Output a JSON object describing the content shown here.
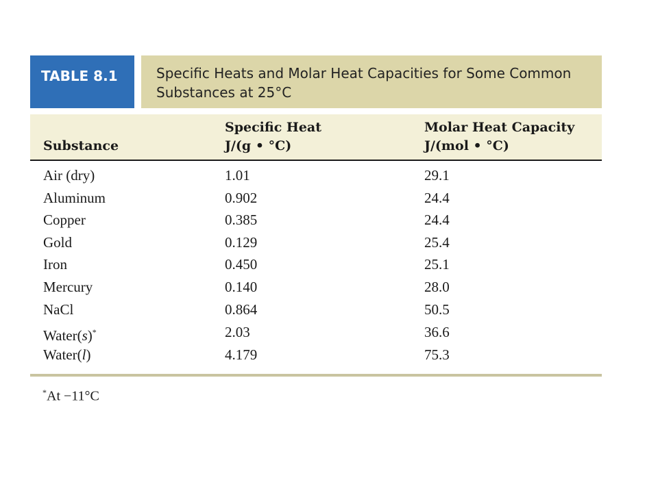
{
  "table": {
    "label": "TABLE 8.1",
    "caption_line1": "Specific Heats and Molar Heat Capacities for Some Common",
    "caption_line2": "Substances at 25°C",
    "headers": {
      "substance": "Substance",
      "specific_heat_line1": "Specific Heat",
      "specific_heat_line2": "J/(g • °C)",
      "molar_line1": "Molar Heat Capacity",
      "molar_line2": "J/(mol  • °C)"
    },
    "rows": [
      {
        "substance": "Air (dry)",
        "specific_heat": "1.01",
        "molar_heat_capacity": "29.1"
      },
      {
        "substance": "Aluminum",
        "specific_heat": "0.902",
        "molar_heat_capacity": "24.4"
      },
      {
        "substance": "Copper",
        "specific_heat": "0.385",
        "molar_heat_capacity": "24.4"
      },
      {
        "substance": "Gold",
        "specific_heat": "0.129",
        "molar_heat_capacity": "25.4"
      },
      {
        "substance": "Iron",
        "specific_heat": "0.450",
        "molar_heat_capacity": "25.1"
      },
      {
        "substance": "Mercury",
        "specific_heat": "0.140",
        "molar_heat_capacity": "28.0"
      },
      {
        "substance": "NaCl",
        "specific_heat": "0.864",
        "molar_heat_capacity": "50.5"
      },
      {
        "substance_prefix": "Water(",
        "substance_state": "s",
        "substance_suffix": ")",
        "substance_mark": "*",
        "specific_heat": "2.03",
        "molar_heat_capacity": "36.6"
      },
      {
        "substance_prefix": "Water(",
        "substance_state": "l",
        "substance_suffix": ")",
        "specific_heat": "4.179",
        "molar_heat_capacity": "75.3"
      }
    ],
    "footnote_mark": "*",
    "footnote_text": "At −11°C"
  },
  "colors": {
    "label_bg": "#2f6fb7",
    "caption_bg": "#dcd6a9",
    "header_bg": "#f3f0d8"
  }
}
